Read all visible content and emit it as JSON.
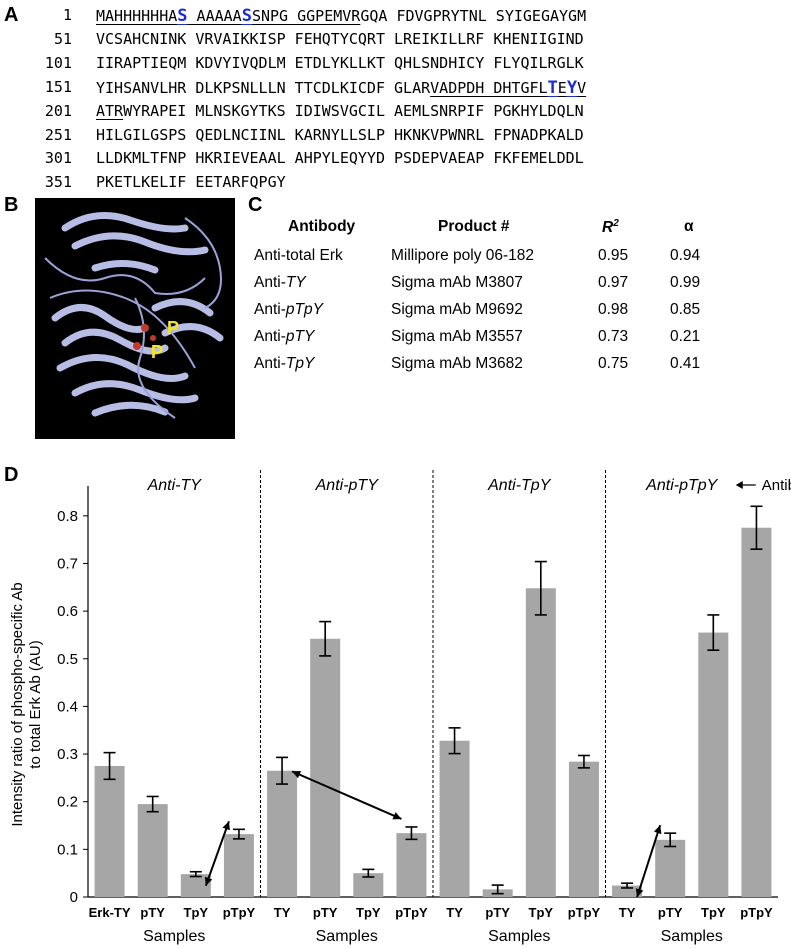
{
  "panel_letters": {
    "a": "A",
    "b": "B",
    "c": "C",
    "d": "D"
  },
  "sequence": {
    "rows": [
      {
        "num": "1",
        "parts": [
          {
            "t": "MAHHHHHHA",
            "u": true
          },
          {
            "t": "S",
            "u": true,
            "hl": true
          },
          {
            "t": " AAAAA",
            "u": true
          },
          {
            "t": "S",
            "u": true,
            "hl": true
          },
          {
            "t": "SNPG GGPEMVR",
            "u": true
          },
          {
            "t": "GQA FDVGPRYTNL SYIGEGAYGM"
          }
        ]
      },
      {
        "num": "51",
        "parts": [
          {
            "t": "VCSAHCNINK VRVAIKKISP FEHQTYCQRT LREIKILLRF KHENIIGIND"
          }
        ]
      },
      {
        "num": "101",
        "parts": [
          {
            "t": "IIRAPTIEQM KDVYIVQDLM ETDLYKLLKT QHLSNDHICY FLYQILRGLK"
          }
        ]
      },
      {
        "num": "151",
        "parts": [
          {
            "t": "YIHSANVLHR DLKPSNLLLN TTCDLKICDF GLAR"
          },
          {
            "t": "VADPDH DHTGFL",
            "u": true
          },
          {
            "t": "T",
            "u": true,
            "hl": true
          },
          {
            "t": "E",
            "u": true
          },
          {
            "t": "Y",
            "u": true,
            "hl": true
          },
          {
            "t": "V",
            "u": true
          }
        ]
      },
      {
        "num": "201",
        "parts": [
          {
            "t": "ATR",
            "u": true
          },
          {
            "t": "WYRAPEI MLNSKGYTKS IDIWSVGCIL AEMLSNRPIF PGKHYLDQLN"
          }
        ]
      },
      {
        "num": "251",
        "parts": [
          {
            "t": "HILGILGSPS QEDLNCIINL KARNYLLSLP HKNKVPWNRL FPNADPKALD"
          }
        ]
      },
      {
        "num": "301",
        "parts": [
          {
            "t": "LLDKMLTFNP HKRIEVEAAL AHPYLEQYYD PSDEPVAEAP FKFEMELDDL"
          }
        ]
      },
      {
        "num": "351",
        "parts": [
          {
            "t": "PKETLKELIF EETARFQPGY"
          }
        ]
      }
    ]
  },
  "structure": {
    "labels": [
      "P",
      "P"
    ]
  },
  "antibody_table": {
    "headers": {
      "antibody": "Antibody",
      "product": "Product #",
      "r2": "R",
      "r2_sup": "2",
      "alpha": "α"
    },
    "rows": [
      {
        "antibody_prefix": "Anti-",
        "antibody_name": "total Erk",
        "italic": false,
        "product": "Millipore poly 06-182",
        "r2": "0.95",
        "alpha": "0.94"
      },
      {
        "antibody_prefix": "Anti-",
        "antibody_name": "TY",
        "italic": true,
        "product": "Sigma mAb M3807",
        "r2": "0.97",
        "alpha": "0.99"
      },
      {
        "antibody_prefix": "Anti-",
        "antibody_name": "pTpY",
        "italic": true,
        "product": "Sigma mAb M9692",
        "r2": "0.98",
        "alpha": "0.85"
      },
      {
        "antibody_prefix": "Anti-",
        "antibody_name": "pTY",
        "italic": true,
        "product": "Sigma mAb M3557",
        "r2": "0.73",
        "alpha": "0.21"
      },
      {
        "antibody_prefix": "Anti-",
        "antibody_name": "TpY",
        "italic": true,
        "product": "Sigma mAb M3682",
        "r2": "0.75",
        "alpha": "0.41"
      }
    ]
  },
  "chart_data": {
    "type": "bar",
    "ylabel_line1": "Intensity ratio of phospho-specific Ab",
    "ylabel_line2": "to total Erk Ab (AU)",
    "ylim": [
      0,
      0.85
    ],
    "yticks": [
      "0",
      "0.1",
      "0.2",
      "0.3",
      "0.4",
      "0.5",
      "0.6",
      "0.7",
      "0.8"
    ],
    "ytick_values": [
      0,
      0.1,
      0.2,
      0.3,
      0.4,
      0.5,
      0.6,
      0.7,
      0.8
    ],
    "antibody_arrow_label": "Antibody",
    "bar_color": "#a6a6a6",
    "groups": [
      {
        "title": "Anti-TY",
        "xlabel": "Samples",
        "categories": [
          "Erk-TY",
          "pTY",
          "TpY",
          "pTpY"
        ],
        "values": [
          0.275,
          0.195,
          0.048,
          0.132
        ],
        "errors": [
          0.028,
          0.016,
          0.005,
          0.01
        ],
        "arrow": [
          2,
          3
        ]
      },
      {
        "title": "Anti-pTY",
        "xlabel": "Samples",
        "categories": [
          "TY",
          "pTY",
          "TpY",
          "pTpY"
        ],
        "values": [
          0.265,
          0.542,
          0.05,
          0.134
        ],
        "errors": [
          0.028,
          0.036,
          0.008,
          0.013
        ],
        "arrow": [
          0,
          3
        ]
      },
      {
        "title": "Anti-TpY",
        "xlabel": "Samples",
        "categories": [
          "TY",
          "pTY",
          "TpY",
          "pTpY"
        ],
        "values": [
          0.328,
          0.016,
          0.648,
          0.284
        ],
        "errors": [
          0.027,
          0.009,
          0.056,
          0.013
        ],
        "arrow": null
      },
      {
        "title": "Anti-pTpY",
        "xlabel": "Samples",
        "categories": [
          "TY",
          "pTY",
          "TpY",
          "pTpY"
        ],
        "values": [
          0.024,
          0.12,
          0.555,
          0.775
        ],
        "errors": [
          0.005,
          0.014,
          0.037,
          0.045
        ],
        "arrow": [
          0,
          1
        ]
      }
    ]
  }
}
